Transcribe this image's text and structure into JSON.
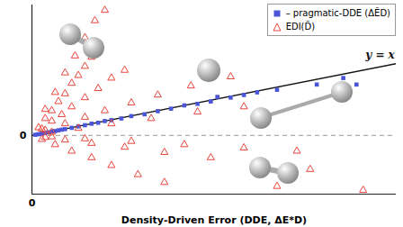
{
  "chart_data": {
    "type": "scatter",
    "xlabel": "Density-Driven Error (DDE, ΔE*D)",
    "xlim": [
      0,
      5.5
    ],
    "ylim": [
      -4.5,
      10
    ],
    "xticks": [
      0
    ],
    "yticks": [
      0
    ],
    "legend": "top-right",
    "annotations": [
      "y = x"
    ],
    "series": [
      {
        "name": "– pragmatic-DDE (ΔẼD)",
        "color": "#4a55d8",
        "marker": "square",
        "x": [
          0.05,
          0.1,
          0.15,
          0.2,
          0.25,
          0.3,
          0.35,
          0.4,
          0.45,
          0.5,
          0.6,
          0.7,
          0.8,
          0.9,
          1.0,
          1.1,
          1.2,
          1.35,
          1.5,
          1.7,
          1.9,
          2.1,
          2.3,
          2.5,
          2.7,
          2.8,
          3.0,
          3.2,
          3.4,
          3.7,
          4.3,
          4.7,
          4.9
        ],
        "values": [
          0.05,
          0.09,
          0.14,
          0.19,
          0.24,
          0.3,
          0.33,
          0.39,
          0.44,
          0.48,
          0.58,
          0.69,
          0.78,
          0.9,
          0.97,
          1.1,
          1.17,
          1.3,
          1.48,
          1.62,
          1.86,
          2.05,
          2.3,
          2.42,
          2.6,
          2.95,
          2.9,
          3.1,
          3.3,
          3.5,
          3.9,
          4.4,
          3.9
        ]
      },
      {
        "name": "EDI(D̃)",
        "color": "#e8453c",
        "marker": "triangle",
        "x": [
          0.1,
          0.2,
          0.3,
          0.4,
          0.5,
          0.6,
          0.7,
          0.8,
          0.9,
          0.15,
          0.3,
          0.45,
          0.6,
          0.8,
          1.0,
          1.2,
          1.4,
          0.2,
          0.35,
          0.5,
          0.65,
          0.8,
          0.95,
          1.1,
          0.2,
          0.5,
          0.8,
          1.1,
          1.5,
          1.9,
          2.4,
          3.0,
          0.3,
          0.7,
          1.2,
          1.8,
          2.5,
          3.2,
          0.2,
          0.5,
          0.9,
          1.4,
          2.0,
          2.7,
          3.4,
          4.2,
          0.15,
          0.35,
          0.6,
          0.9,
          1.2,
          1.6,
          2.0,
          0.3,
          0.8,
          1.5,
          2.3,
          3.2,
          4.0,
          3.7,
          5.0
        ],
        "values": [
          0.6,
          1.3,
          1.9,
          2.6,
          3.2,
          4.0,
          4.6,
          5.3,
          6.0,
          0.5,
          1.1,
          1.6,
          2.2,
          2.9,
          3.6,
          4.4,
          5.0,
          2.0,
          3.3,
          4.8,
          6.1,
          7.5,
          8.8,
          9.6,
          0.4,
          0.9,
          1.4,
          1.9,
          2.5,
          3.1,
          3.8,
          4.5,
          0.25,
          0.55,
          0.9,
          1.3,
          1.8,
          2.2,
          -0.15,
          -0.35,
          -0.6,
          -0.9,
          -1.3,
          -1.7,
          -2.1,
          -2.6,
          -0.3,
          -0.7,
          -1.2,
          -1.7,
          -2.3,
          -3.0,
          -3.6,
          -0.1,
          -0.25,
          -0.45,
          -0.7,
          -0.95,
          -1.2,
          -3.9,
          -4.2
        ]
      }
    ]
  }
}
